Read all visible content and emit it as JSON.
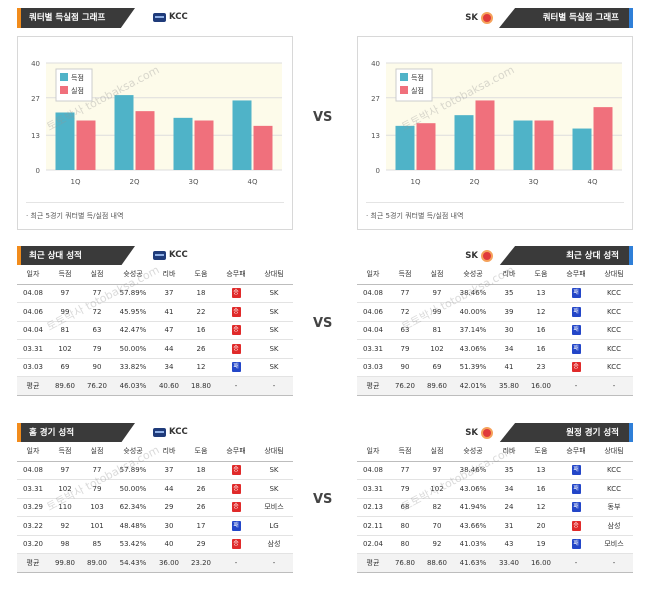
{
  "colors": {
    "score": "#4fb3c8",
    "concede": "#f0707c",
    "win": "#e02a2a",
    "loss": "#2346c8"
  },
  "vs": "VS",
  "watermark": "토토박사 totobaksa.com",
  "top": {
    "left": {
      "title": "쿼터별 득실점 그래프",
      "team": "KCC",
      "note": "·  최근 5경기 쿼터별 득/실점 내역"
    },
    "right": {
      "title": "쿼터별 득실점 그래프",
      "team": "SK",
      "note": "·  최근 5경기 쿼터별 득/실점 내역"
    }
  },
  "chart_data": [
    {
      "type": "bar",
      "categories": [
        "1Q",
        "2Q",
        "3Q",
        "4Q"
      ],
      "series": [
        {
          "name": "득점",
          "values": [
            21.5,
            28,
            19.5,
            26
          ]
        },
        {
          "name": "실점",
          "values": [
            18.5,
            22,
            18.5,
            16.5
          ]
        }
      ],
      "yticks": [
        "0",
        "13",
        "27",
        "40"
      ],
      "ylim": [
        0,
        40
      ]
    },
    {
      "type": "bar",
      "categories": [
        "1Q",
        "2Q",
        "3Q",
        "4Q"
      ],
      "series": [
        {
          "name": "득점",
          "values": [
            16.5,
            20.5,
            18.5,
            15.5
          ]
        },
        {
          "name": "실점",
          "values": [
            17.5,
            26,
            18.5,
            23.5
          ]
        }
      ],
      "yticks": [
        "0",
        "13",
        "27",
        "40"
      ],
      "ylim": [
        0,
        40
      ]
    }
  ],
  "sections": [
    {
      "left": {
        "title": "최근 상대 성적",
        "team": "KCC",
        "headers": [
          "일자",
          "득점",
          "실점",
          "슛성공",
          "리바",
          "도움",
          "승무패",
          "상대팀"
        ],
        "rows": [
          [
            "04.08",
            "97",
            "77",
            "57.89%",
            "37",
            "18",
            "승",
            "SK"
          ],
          [
            "04.06",
            "99",
            "72",
            "45.95%",
            "41",
            "22",
            "승",
            "SK"
          ],
          [
            "04.04",
            "81",
            "63",
            "42.47%",
            "47",
            "16",
            "승",
            "SK"
          ],
          [
            "03.31",
            "102",
            "79",
            "50.00%",
            "44",
            "26",
            "승",
            "SK"
          ],
          [
            "03.03",
            "69",
            "90",
            "33.82%",
            "34",
            "12",
            "패",
            "SK"
          ]
        ],
        "avg": [
          "평균",
          "89.60",
          "76.20",
          "46.03%",
          "40.60",
          "18.80",
          "-",
          "-"
        ]
      },
      "right": {
        "title": "최근 상대 성적",
        "team": "SK",
        "headers": [
          "일자",
          "득점",
          "실점",
          "슛성공",
          "리바",
          "도움",
          "승무패",
          "상대팀"
        ],
        "rows": [
          [
            "04.08",
            "77",
            "97",
            "38.46%",
            "35",
            "13",
            "패",
            "KCC"
          ],
          [
            "04.06",
            "72",
            "99",
            "40.00%",
            "39",
            "12",
            "패",
            "KCC"
          ],
          [
            "04.04",
            "63",
            "81",
            "37.14%",
            "30",
            "16",
            "패",
            "KCC"
          ],
          [
            "03.31",
            "79",
            "102",
            "43.06%",
            "34",
            "16",
            "패",
            "KCC"
          ],
          [
            "03.03",
            "90",
            "69",
            "51.39%",
            "41",
            "23",
            "승",
            "KCC"
          ]
        ],
        "avg": [
          "평균",
          "76.20",
          "89.60",
          "42.01%",
          "35.80",
          "16.00",
          "-",
          "-"
        ]
      }
    },
    {
      "left": {
        "title": "홈 경기 성적",
        "team": "KCC",
        "headers": [
          "일자",
          "득점",
          "실점",
          "슛성공",
          "리바",
          "도움",
          "승무패",
          "상대팀"
        ],
        "rows": [
          [
            "04.08",
            "97",
            "77",
            "57.89%",
            "37",
            "18",
            "승",
            "SK"
          ],
          [
            "03.31",
            "102",
            "79",
            "50.00%",
            "44",
            "26",
            "승",
            "SK"
          ],
          [
            "03.29",
            "110",
            "103",
            "62.34%",
            "29",
            "26",
            "승",
            "모비스"
          ],
          [
            "03.22",
            "92",
            "101",
            "48.48%",
            "30",
            "17",
            "패",
            "LG"
          ],
          [
            "03.20",
            "98",
            "85",
            "53.42%",
            "40",
            "29",
            "승",
            "삼성"
          ]
        ],
        "avg": [
          "평균",
          "99.80",
          "89.00",
          "54.43%",
          "36.00",
          "23.20",
          "-",
          "-"
        ]
      },
      "right": {
        "title": "원정 경기 성적",
        "team": "SK",
        "headers": [
          "일자",
          "득점",
          "실점",
          "슛성공",
          "리바",
          "도움",
          "승무패",
          "상대팀"
        ],
        "rows": [
          [
            "04.08",
            "77",
            "97",
            "38.46%",
            "35",
            "13",
            "패",
            "KCC"
          ],
          [
            "03.31",
            "79",
            "102",
            "43.06%",
            "34",
            "16",
            "패",
            "KCC"
          ],
          [
            "02.13",
            "68",
            "82",
            "41.94%",
            "24",
            "12",
            "패",
            "동부"
          ],
          [
            "02.11",
            "80",
            "70",
            "43.66%",
            "31",
            "20",
            "승",
            "삼성"
          ],
          [
            "02.04",
            "80",
            "92",
            "41.03%",
            "43",
            "19",
            "패",
            "모비스"
          ]
        ],
        "avg": [
          "평균",
          "76.80",
          "88.60",
          "41.63%",
          "33.40",
          "16.00",
          "-",
          "-"
        ]
      }
    }
  ]
}
